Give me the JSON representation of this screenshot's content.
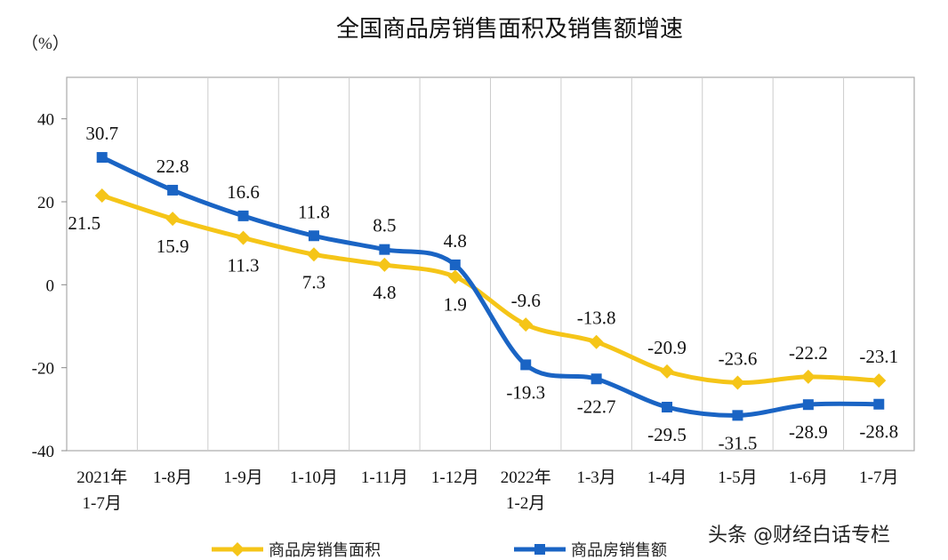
{
  "chart_data": {
    "type": "line",
    "title": "全国商品房销售面积及销售额增速",
    "ylabel": "（%）",
    "categories": [
      "2021年\n1-7月",
      "1-8月",
      "1-9月",
      "1-10月",
      "1-11月",
      "1-12月",
      "2022年\n1-2月",
      "1-3月",
      "1-4月",
      "1-5月",
      "1-6月",
      "1-7月"
    ],
    "ylim": [
      -40,
      50
    ],
    "yticks": [
      -40,
      -20,
      0,
      20,
      40
    ],
    "ytick_labels": [
      "-40",
      "-20",
      "0",
      "20",
      "40"
    ],
    "grid": "vertical category separators",
    "legend": "bottom",
    "series": [
      {
        "name": "商品房销售面积",
        "color": "#f5c518",
        "marker": "diamond",
        "values": [
          21.5,
          15.9,
          11.3,
          7.3,
          4.8,
          1.9,
          -9.6,
          -13.8,
          -20.9,
          -23.6,
          -22.2,
          -23.1
        ],
        "labels": [
          "21.5",
          "15.9",
          "11.3",
          "7.3",
          "4.8",
          "1.9",
          "-9.6",
          "-13.8",
          "-20.9",
          "-23.6",
          "-22.2",
          "-23.1"
        ]
      },
      {
        "name": "商品房销售额",
        "color": "#1a64c4",
        "marker": "square",
        "values": [
          30.7,
          22.8,
          16.6,
          11.8,
          8.5,
          4.8,
          -19.3,
          -22.7,
          -29.5,
          -31.5,
          -28.9,
          -28.8
        ],
        "labels": [
          "30.7",
          "22.8",
          "16.6",
          "11.8",
          "8.5",
          "4.8",
          "-19.3",
          "-22.7",
          "-29.5",
          "-31.5",
          "-28.9",
          "-28.8"
        ]
      }
    ]
  },
  "watermark": "头条 @财经白话专栏"
}
